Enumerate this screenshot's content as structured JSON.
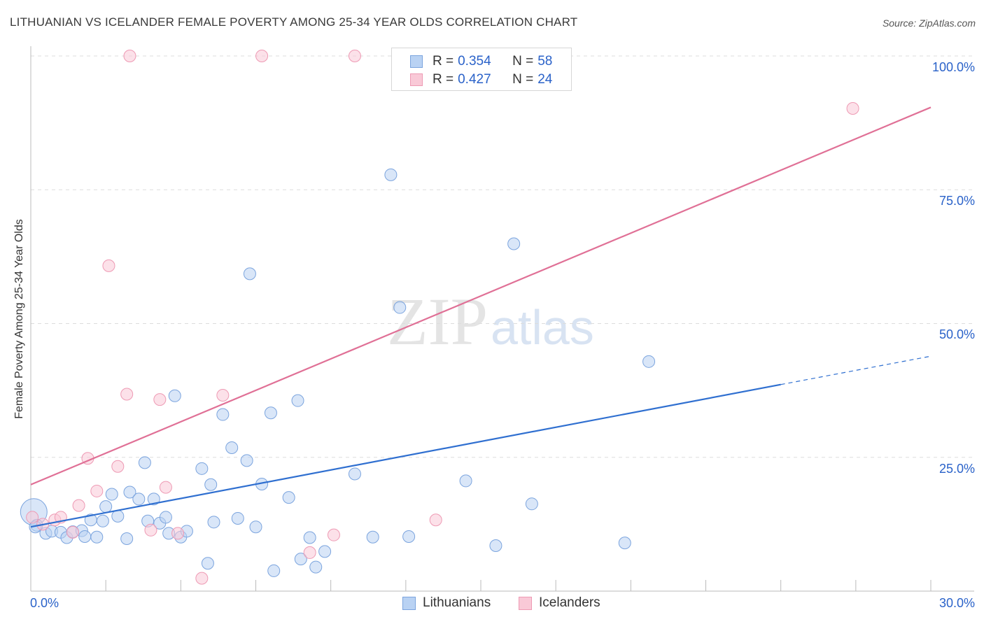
{
  "title": "LITHUANIAN VS ICELANDER FEMALE POVERTY AMONG 25-34 YEAR OLDS CORRELATION CHART",
  "source": "Source: ZipAtlas.com",
  "watermark": {
    "zip": "ZIP",
    "atlas": "atlas"
  },
  "colors": {
    "lithuanians_fill": "#b9d2f3",
    "lithuanians_stroke": "#7ba4de",
    "lithuanians_line": "#2f6fd0",
    "icelanders_fill": "#f9c9d7",
    "icelanders_stroke": "#ee9ab4",
    "icelanders_line": "#e07096",
    "accent_text": "#2a62c9",
    "grid": "#dddddd"
  },
  "legend": {
    "rows": [
      {
        "r_label": "R =",
        "r_value": "0.354",
        "n_label": "N =",
        "n_value": "58"
      },
      {
        "r_label": "R =",
        "r_value": "0.427",
        "n_label": "N =",
        "n_value": "24"
      }
    ]
  },
  "chart_data": {
    "type": "scatter",
    "title": "LITHUANIAN VS ICELANDER FEMALE POVERTY AMONG 25-34 YEAR OLDS CORRELATION CHART",
    "xlabel": "",
    "ylabel": "Female Poverty Among 25-34 Year Olds",
    "xlim": [
      0,
      30
    ],
    "ylim": [
      0,
      100
    ],
    "x_tick_labels": [
      "0.0%",
      "30.0%"
    ],
    "y_ticks": [
      25,
      50,
      75,
      100
    ],
    "y_tick_labels": [
      "25.0%",
      "50.0%",
      "75.0%",
      "100.0%"
    ],
    "grid": true,
    "legend_position": "top-center",
    "series": [
      {
        "name": "Lithuanians",
        "r": 0.354,
        "n": 58,
        "trend": {
          "x": [
            0,
            25
          ],
          "y": [
            12.0,
            38.6
          ],
          "dashed_extension_to_x": 30,
          "dashed_end_y": 43.9
        },
        "points": [
          [
            0.1,
            14.8
          ],
          [
            0.2,
            12.3
          ],
          [
            0.5,
            10.8
          ],
          [
            0.7,
            11.2
          ],
          [
            1.0,
            11.0
          ],
          [
            1.2,
            10.0
          ],
          [
            1.4,
            11.1
          ],
          [
            1.7,
            11.3
          ],
          [
            1.8,
            10.2
          ],
          [
            2.0,
            13.3
          ],
          [
            2.2,
            10.1
          ],
          [
            2.4,
            13.1
          ],
          [
            2.5,
            15.8
          ],
          [
            2.7,
            18.1
          ],
          [
            2.9,
            14.0
          ],
          [
            3.2,
            9.8
          ],
          [
            3.3,
            18.5
          ],
          [
            3.6,
            17.2
          ],
          [
            3.8,
            24.0
          ],
          [
            3.9,
            13.1
          ],
          [
            4.1,
            17.2
          ],
          [
            4.3,
            12.7
          ],
          [
            4.5,
            13.8
          ],
          [
            4.6,
            10.8
          ],
          [
            4.8,
            36.5
          ],
          [
            5.0,
            10.1
          ],
          [
            5.2,
            11.2
          ],
          [
            5.7,
            22.9
          ],
          [
            5.9,
            5.2
          ],
          [
            6.0,
            19.9
          ],
          [
            6.1,
            12.9
          ],
          [
            6.4,
            33.0
          ],
          [
            6.7,
            26.8
          ],
          [
            6.9,
            13.6
          ],
          [
            7.2,
            24.4
          ],
          [
            7.3,
            59.3
          ],
          [
            7.5,
            12.0
          ],
          [
            7.7,
            20.0
          ],
          [
            8.0,
            33.3
          ],
          [
            8.1,
            3.8
          ],
          [
            8.6,
            17.5
          ],
          [
            8.9,
            35.6
          ],
          [
            9.0,
            6.0
          ],
          [
            9.3,
            10.0
          ],
          [
            9.5,
            4.5
          ],
          [
            9.8,
            7.4
          ],
          [
            10.8,
            21.9
          ],
          [
            11.4,
            10.1
          ],
          [
            12.0,
            77.8
          ],
          [
            12.3,
            53.0
          ],
          [
            12.6,
            10.2
          ],
          [
            14.5,
            20.6
          ],
          [
            15.5,
            8.5
          ],
          [
            16.1,
            64.9
          ],
          [
            16.7,
            16.3
          ],
          [
            19.8,
            9.0
          ],
          [
            20.6,
            42.9
          ],
          [
            0.15,
            12.0
          ]
        ]
      },
      {
        "name": "Icelanders",
        "r": 0.427,
        "n": 24,
        "trend": {
          "x": [
            0,
            30
          ],
          "y": [
            19.9,
            90.4
          ]
        },
        "points": [
          [
            0.05,
            13.8
          ],
          [
            0.4,
            12.5
          ],
          [
            0.8,
            13.3
          ],
          [
            1.0,
            13.8
          ],
          [
            1.4,
            11.0
          ],
          [
            1.6,
            16.0
          ],
          [
            1.9,
            24.8
          ],
          [
            2.2,
            18.7
          ],
          [
            2.6,
            60.8
          ],
          [
            2.9,
            23.3
          ],
          [
            3.2,
            36.8
          ],
          [
            3.3,
            100.0
          ],
          [
            4.0,
            11.4
          ],
          [
            4.3,
            35.8
          ],
          [
            4.5,
            19.4
          ],
          [
            4.9,
            10.8
          ],
          [
            5.7,
            2.4
          ],
          [
            6.4,
            36.6
          ],
          [
            7.7,
            100.0
          ],
          [
            9.3,
            7.2
          ],
          [
            10.1,
            10.5
          ],
          [
            10.8,
            100.0
          ],
          [
            13.5,
            13.3
          ],
          [
            27.4,
            90.2
          ]
        ]
      }
    ]
  }
}
